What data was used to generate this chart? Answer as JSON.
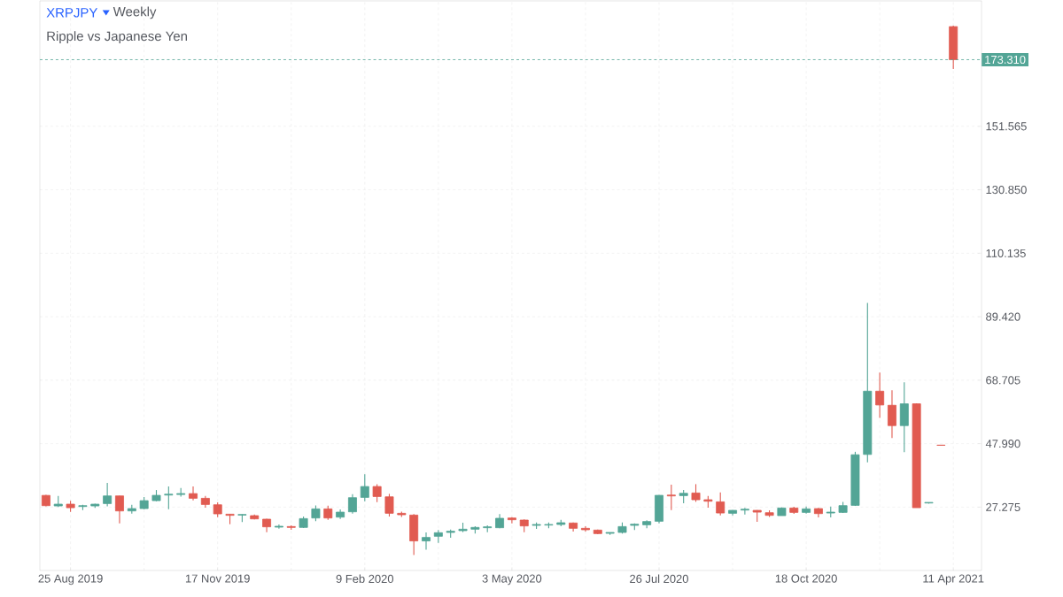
{
  "chart_data": {
    "type": "candlestick",
    "title": "XRPJPY",
    "subtitle": "Weekly",
    "annotations": [
      "Ripple vs Japanese Yen"
    ],
    "categories": [
      null,
      null,
      "25 Aug 2019",
      null,
      null,
      null,
      null,
      null,
      null,
      null,
      null,
      null,
      null,
      null,
      "17 Nov 2019",
      null,
      null,
      null,
      null,
      null,
      null,
      null,
      null,
      null,
      null,
      null,
      "9 Feb 2020",
      null,
      null,
      null,
      null,
      null,
      null,
      null,
      null,
      null,
      null,
      null,
      "3 May 2020",
      null,
      null,
      null,
      null,
      null,
      null,
      null,
      null,
      null,
      null,
      null,
      "26 Jul 2020",
      null,
      null,
      null,
      null,
      null,
      null,
      null,
      null,
      null,
      null,
      null,
      "18 Oct 2020",
      null,
      null,
      null,
      null,
      null,
      null,
      null,
      null,
      null,
      null,
      null,
      "11 Apr 2021"
    ],
    "ohlc": [
      [
        31.1,
        31.3,
        27.5,
        27.75
      ],
      [
        27.66,
        30.9,
        27.3,
        28.24
      ],
      [
        28.24,
        29.3,
        25.74,
        27.08
      ],
      [
        27.47,
        28.04,
        26.3,
        27.75
      ],
      [
        27.66,
        28.43,
        26.99,
        28.24
      ],
      [
        28.43,
        35.15,
        27.56,
        30.93
      ],
      [
        30.93,
        31.0,
        21.99,
        26.03
      ],
      [
        26.03,
        28.04,
        25.16,
        26.8
      ],
      [
        26.8,
        30.54,
        26.6,
        29.39
      ],
      [
        29.39,
        32.85,
        29.2,
        31.12
      ],
      [
        31.21,
        34.0,
        26.6,
        31.5
      ],
      [
        31.4,
        33.52,
        30.73,
        31.7
      ],
      [
        31.69,
        34.0,
        29.48,
        30.16
      ],
      [
        30.16,
        30.93,
        27.08,
        28.14
      ],
      [
        28.04,
        28.8,
        24.01,
        25.07
      ],
      [
        24.97,
        25.0,
        21.7,
        24.59
      ],
      [
        24.68,
        24.9,
        22.38,
        24.87
      ],
      [
        24.49,
        24.87,
        23.3,
        23.43
      ],
      [
        23.34,
        23.5,
        19.11,
        20.84
      ],
      [
        20.74,
        21.61,
        20.26,
        21.03
      ],
      [
        20.93,
        21.3,
        19.88,
        20.65
      ],
      [
        20.65,
        24.2,
        20.45,
        23.53
      ],
      [
        23.72,
        27.85,
        22.66,
        26.7
      ],
      [
        26.7,
        27.75,
        23.14,
        23.72
      ],
      [
        24.01,
        26.5,
        23.43,
        25.64
      ],
      [
        25.74,
        31.5,
        25.16,
        30.35
      ],
      [
        30.45,
        38.0,
        29.2,
        34.0
      ],
      [
        34.0,
        34.77,
        28.91,
        30.73
      ],
      [
        30.64,
        31.6,
        24.2,
        25.26
      ],
      [
        25.26,
        25.83,
        24.1,
        24.78
      ],
      [
        24.68,
        24.97,
        11.62,
        16.23
      ],
      [
        16.23,
        19.01,
        13.35,
        17.38
      ],
      [
        17.76,
        19.78,
        15.65,
        18.92
      ],
      [
        19.01,
        19.97,
        17.28,
        19.4
      ],
      [
        19.59,
        22.18,
        19.11,
        20.07
      ],
      [
        20.07,
        21.03,
        18.63,
        20.65
      ],
      [
        20.55,
        21.3,
        19.11,
        20.84
      ],
      [
        20.55,
        24.97,
        20.36,
        23.63
      ],
      [
        23.72,
        24.01,
        21.99,
        23.14
      ],
      [
        23.05,
        23.24,
        19.11,
        21.13
      ],
      [
        21.32,
        22.28,
        20.17,
        21.61
      ],
      [
        21.42,
        22.28,
        20.36,
        21.61
      ],
      [
        21.61,
        23.14,
        21.03,
        22.18
      ],
      [
        22.09,
        22.28,
        19.3,
        20.36
      ],
      [
        20.36,
        21.03,
        19.3,
        19.88
      ],
      [
        19.78,
        19.97,
        18.44,
        18.63
      ],
      [
        18.72,
        19.01,
        18.24,
        19.01
      ],
      [
        19.01,
        22.28,
        18.63,
        20.93
      ],
      [
        21.32,
        21.99,
        19.78,
        21.7
      ],
      [
        21.51,
        22.95,
        20.36,
        22.57
      ],
      [
        22.66,
        31.2,
        21.99,
        31.12
      ],
      [
        31.21,
        34.57,
        26.31,
        30.93
      ],
      [
        31.02,
        32.85,
        28.52,
        31.79
      ],
      [
        31.89,
        34.77,
        29.0,
        29.68
      ],
      [
        29.68,
        30.93,
        27.08,
        29.2
      ],
      [
        29.0,
        32.08,
        24.58,
        25.35
      ],
      [
        25.26,
        26.3,
        24.58,
        26.22
      ],
      [
        26.31,
        26.99,
        24.87,
        26.6
      ],
      [
        26.22,
        26.3,
        22.47,
        25.64
      ],
      [
        25.45,
        26.22,
        24.1,
        24.58
      ],
      [
        24.49,
        27.18,
        24.49,
        26.99
      ],
      [
        26.99,
        27.37,
        25.07,
        25.55
      ],
      [
        25.55,
        27.47,
        25.16,
        26.7
      ],
      [
        26.79,
        26.99,
        23.91,
        25.16
      ],
      [
        25.35,
        27.47,
        23.91,
        25.64
      ],
      [
        25.55,
        29.0,
        25.35,
        27.76
      ],
      [
        27.85,
        45.33,
        27.66,
        44.37
      ],
      [
        44.47,
        93.94,
        41.87,
        65.12
      ],
      [
        65.12,
        71.17,
        56.38,
        60.61
      ],
      [
        60.51,
        65.41,
        49.85,
        53.88
      ],
      [
        53.88,
        68.0,
        45.24,
        60.99
      ],
      [
        60.99,
        61.18,
        27.08,
        27.08
      ],
      [
        28.62,
        28.81,
        28.43,
        28.81
      ],
      [
        47.5,
        47.5,
        47.45,
        47.45
      ],
      [
        184.1,
        184.4,
        170.3,
        173.31
      ]
    ],
    "colors": [
      "#e15b51",
      "#53a596",
      "#e15b51",
      "#53a596",
      "#53a596",
      "#53a596",
      "#e15b51",
      "#53a596",
      "#53a596",
      "#53a596",
      "#53a596",
      "#53a596",
      "#e15b51",
      "#e15b51",
      "#e15b51",
      "#e15b51",
      "#53a596",
      "#e15b51",
      "#e15b51",
      "#53a596",
      "#e15b51",
      "#53a596",
      "#53a596",
      "#e15b51",
      "#53a596",
      "#53a596",
      "#53a596",
      "#e15b51",
      "#e15b51",
      "#e15b51",
      "#e15b51",
      "#53a596",
      "#53a596",
      "#53a596",
      "#53a596",
      "#53a596",
      "#53a596",
      "#53a596",
      "#e15b51",
      "#e15b51",
      "#53a596",
      "#53a596",
      "#53a596",
      "#e15b51",
      "#e15b51",
      "#e15b51",
      "#53a596",
      "#53a596",
      "#53a596",
      "#53a596",
      "#53a596",
      "#e15b51",
      "#53a596",
      "#e15b51",
      "#e15b51",
      "#e15b51",
      "#53a596",
      "#53a596",
      "#e15b51",
      "#e15b51",
      "#53a596",
      "#e15b51",
      "#53a596",
      "#e15b51",
      "#53a596",
      "#53a596",
      "#53a596",
      "#53a596",
      "#e15b51",
      "#e15b51",
      "#53a596",
      "#e15b51",
      "#53a596",
      "#e15b51",
      "#e15b51"
    ],
    "ylim": [
      6.6,
      192.5
    ],
    "yticks": [
      27.275,
      {
        "value": 47.99,
        "label": "47.990"
      },
      68.705,
      {
        "value": 89.42,
        "label": "89.420"
      },
      110.135,
      {
        "value": 130.85,
        "label": "130.850"
      },
      151.565
    ],
    "ref_lines": [
      {
        "axis": "y",
        "value": 173.31,
        "label": "173.310",
        "color": "#53a596",
        "line_style": "dashed"
      }
    ],
    "grid": true
  }
}
